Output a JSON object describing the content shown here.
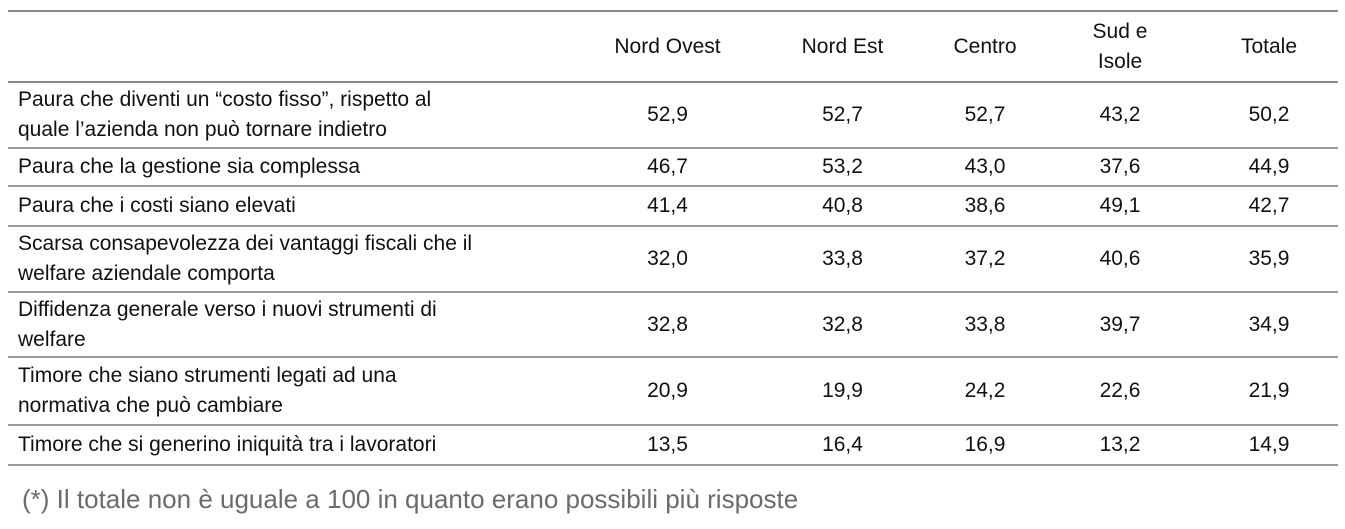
{
  "table": {
    "columns": [
      "",
      "Nord Ovest",
      "Nord Est",
      "Centro",
      [
        "Sud e",
        "Isole"
      ],
      "Totale"
    ],
    "rows": [
      {
        "label": [
          "Paura che diventi un “costo fisso”, rispetto al",
          "quale l’azienda non può tornare indietro"
        ],
        "values": [
          "52,9",
          "52,7",
          "52,7",
          "43,2",
          "50,2"
        ]
      },
      {
        "label": [
          "Paura che la gestione sia complessa"
        ],
        "values": [
          "46,7",
          "53,2",
          "43,0",
          "37,6",
          "44,9"
        ]
      },
      {
        "label": [
          "Paura che i costi siano elevati"
        ],
        "values": [
          "41,4",
          "40,8",
          "38,6",
          "49,1",
          "42,7"
        ]
      },
      {
        "label": [
          "Scarsa consapevolezza dei vantaggi fiscali che il",
          "welfare aziendale comporta"
        ],
        "values": [
          "32,0",
          "33,8",
          "37,2",
          "40,6",
          "35,9"
        ]
      },
      {
        "label": [
          "Diffidenza generale verso i nuovi strumenti di",
          "welfare"
        ],
        "values": [
          "32,8",
          "32,8",
          "33,8",
          "39,7",
          "34,9"
        ]
      },
      {
        "label": [
          "Timore che siano strumenti legati ad una",
          "normativa che può cambiare"
        ],
        "values": [
          "20,9",
          "19,9",
          "24,2",
          "22,6",
          "21,9"
        ]
      },
      {
        "label": [
          "Timore che si generino iniquità tra i lavoratori"
        ],
        "values": [
          "13,5",
          "16,4",
          "16,9",
          "13,2",
          "14,9"
        ]
      }
    ]
  },
  "footnote": "(*) Il totale non è uguale a 100 in quanto erano possibili più risposte"
}
